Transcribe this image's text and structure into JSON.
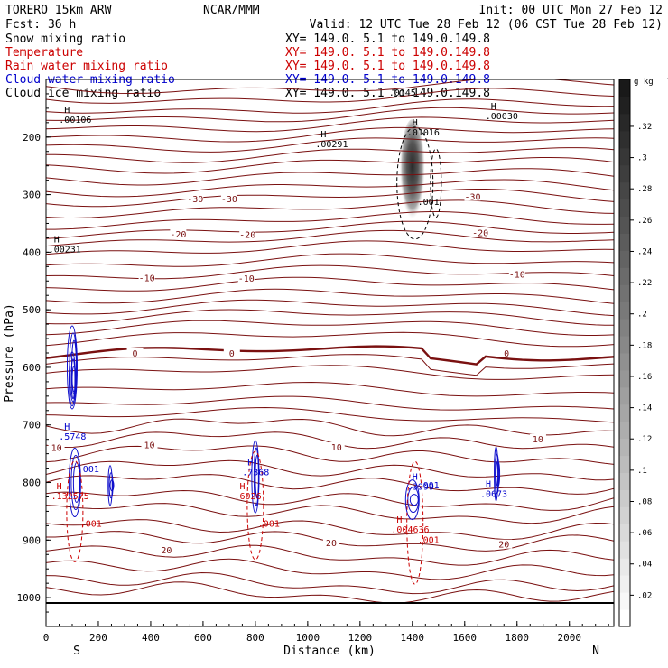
{
  "header": {
    "title": "TORERO  15km ARW",
    "center": "NCAR/MMM",
    "init": "Init: 00 UTC Mon 27 Feb 12",
    "fcst": "Fcst:   36 h",
    "valid": "Valid: 12 UTC Tue 28 Feb 12 (06 CST Tue 28 Feb 12)"
  },
  "legend": [
    {
      "name": "Snow mixing ratio",
      "xy": "XY= 149.0.  5.1 to 149.0.149.8",
      "color": "#000000"
    },
    {
      "name": "Temperature",
      "xy": "XY= 149.0.  5.1 to 149.0.149.8",
      "color": "#cc0000"
    },
    {
      "name": "Rain water mixing ratio",
      "xy": "XY= 149.0.  5.1 to 149.0.149.8",
      "color": "#cc0000"
    },
    {
      "name": "Cloud water mixing ratio",
      "xy": "XY= 149.0.  5.1 to 149.0.149.8",
      "color": "#0000cc"
    },
    {
      "name": "Cloud ice mixing ratio",
      "xy": "XY= 149.0.  5.1 to 149.0.149.8",
      "color": "#000000"
    }
  ],
  "chart_data": {
    "type": "contour-cross-section",
    "title": "TORERO 15km ARW cross section",
    "xlabel": "Distance (km)",
    "ylabel": "Pressure (hPa)",
    "xlim": [
      0,
      2170
    ],
    "ylim": [
      1050,
      100
    ],
    "xticks": [
      "0",
      "200",
      "400",
      "600",
      "800",
      "1000",
      "1200",
      "1400",
      "1600",
      "1800",
      "2000"
    ],
    "xtick_values": [
      0,
      200,
      400,
      600,
      800,
      1000,
      1200,
      1400,
      1600,
      1800,
      2000
    ],
    "yticks": [
      "200",
      "300",
      "400",
      "500",
      "600",
      "700",
      "800",
      "900",
      "1000"
    ],
    "ytick_values": [
      200,
      300,
      400,
      500,
      600,
      700,
      800,
      900,
      1000
    ],
    "x_ends": {
      "left": "S",
      "right": "N"
    },
    "colorbar": {
      "unit": "g kg",
      "unit_exp": "-1",
      "labels": [
        ".32",
        ".3",
        ".28",
        ".26",
        ".24",
        ".22",
        ".2",
        ".18",
        ".16",
        ".14",
        ".12",
        ".1",
        ".08",
        ".06",
        ".04",
        ".02"
      ],
      "values": [
        0.32,
        0.3,
        0.28,
        0.26,
        0.24,
        0.22,
        0.2,
        0.18,
        0.16,
        0.14,
        0.12,
        0.1,
        0.08,
        0.06,
        0.04,
        0.02
      ]
    },
    "temperature_labels": [
      {
        "text": "-30",
        "x": 570,
        "p": 310
      },
      {
        "text": "-30",
        "x": 700,
        "p": 310
      },
      {
        "text": "-30",
        "x": 1630,
        "p": 306
      },
      {
        "text": "-20",
        "x": 505,
        "p": 371
      },
      {
        "text": "-20",
        "x": 770,
        "p": 372
      },
      {
        "text": "-20",
        "x": 1660,
        "p": 369
      },
      {
        "text": "-10",
        "x": 385,
        "p": 447
      },
      {
        "text": "-10",
        "x": 765,
        "p": 448
      },
      {
        "text": "-10",
        "x": 1800,
        "p": 441
      },
      {
        "text": "0",
        "x": 340,
        "p": 578
      },
      {
        "text": "0",
        "x": 710,
        "p": 578
      },
      {
        "text": "0",
        "x": 1760,
        "p": 578
      },
      {
        "text": "10",
        "x": 40,
        "p": 742
      },
      {
        "text": "10",
        "x": 395,
        "p": 737
      },
      {
        "text": "10",
        "x": 1110,
        "p": 741
      },
      {
        "text": "10",
        "x": 1880,
        "p": 727
      },
      {
        "text": "20",
        "x": 460,
        "p": 920
      },
      {
        "text": "20",
        "x": 1090,
        "p": 907
      },
      {
        "text": "20",
        "x": 1750,
        "p": 910
      }
    ],
    "maxima": [
      {
        "label": "H",
        "value": ".00106",
        "x": 70,
        "p": 158,
        "color": "#000000"
      },
      {
        "label": "H",
        "value": ".00291",
        "x": 1050,
        "p": 200,
        "color": "#000000"
      },
      {
        "label": "H",
        "value": ".01016",
        "x": 1400,
        "p": 180,
        "color": "#000000"
      },
      {
        "label": "H",
        "value": ".00030",
        "x": 1700,
        "p": 152,
        "color": "#000000"
      },
      {
        "label": "H",
        "value": ".00231",
        "x": 30,
        "p": 383,
        "color": "#000000"
      },
      {
        "label": "H",
        "value": ".5748",
        "x": 70,
        "p": 708,
        "color": "#0000cc"
      },
      {
        "label": "H",
        "value": ".132575",
        "x": 40,
        "p": 812,
        "color": "#cc0000"
      },
      {
        "label": "H",
        "value": ".7368",
        "x": 770,
        "p": 770,
        "color": "#0000cc"
      },
      {
        "label": "H",
        "value": ".6026",
        "x": 740,
        "p": 812,
        "color": "#cc0000"
      },
      {
        "label": "H",
        "value": ".3999",
        "x": 1400,
        "p": 795,
        "color": "#0000cc"
      },
      {
        "label": "H",
        "value": ".004636",
        "x": 1340,
        "p": 870,
        "color": "#cc0000"
      },
      {
        "label": "H",
        "value": ".0673",
        "x": 1680,
        "p": 808,
        "color": "#0000cc"
      }
    ],
    "small_labels": [
      {
        "text": ".001",
        "x": 120,
        "p": 782,
        "color": "#0000cc"
      },
      {
        "text": ".001",
        "x": 130,
        "p": 877,
        "color": "#cc0000"
      },
      {
        "text": ".001",
        "x": 810,
        "p": 877,
        "color": "#cc0000"
      },
      {
        "text": ".001",
        "x": 1420,
        "p": 810,
        "color": "#0000cc"
      },
      {
        "text": ".001",
        "x": 1420,
        "p": 905,
        "color": "#cc0000"
      },
      {
        "text": ".001",
        "x": 1420,
        "p": 318,
        "color": "#000000"
      },
      {
        "text": ".0145",
        "x": 1310,
        "p": 128,
        "color": "#000000"
      }
    ]
  }
}
